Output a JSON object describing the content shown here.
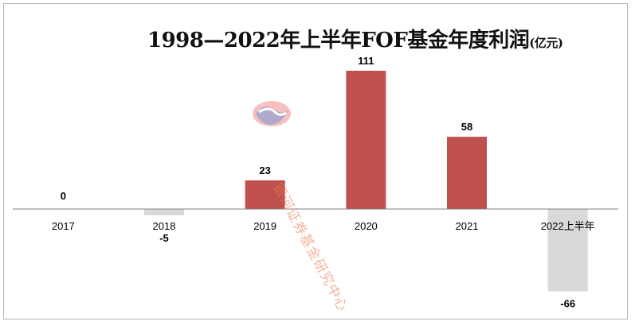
{
  "title": {
    "main": "1998—2022年上半年FOF基金年度利润",
    "unit": "(亿元)"
  },
  "watermark": {
    "text": "银河证券基金研究中心",
    "logo": "galaxy-securities-logo"
  },
  "colors": {
    "positive": "#c0504d",
    "negative": "#d9d9d9",
    "axis": "#808080",
    "text": "#000000"
  },
  "chart_data": {
    "type": "bar",
    "categories": [
      "2017",
      "2018",
      "2019",
      "2020",
      "2021",
      "2022上半年"
    ],
    "values": [
      0,
      -5,
      23,
      111,
      58,
      -66
    ],
    "data_labels": [
      "0",
      "-5",
      "23",
      "111",
      "58",
      "-66"
    ],
    "title": "1998—2022年上半年FOF基金年度利润(亿元)",
    "xlabel": "",
    "ylabel": "",
    "ylim": [
      -66,
      111
    ],
    "grid": false,
    "legend": "none"
  }
}
